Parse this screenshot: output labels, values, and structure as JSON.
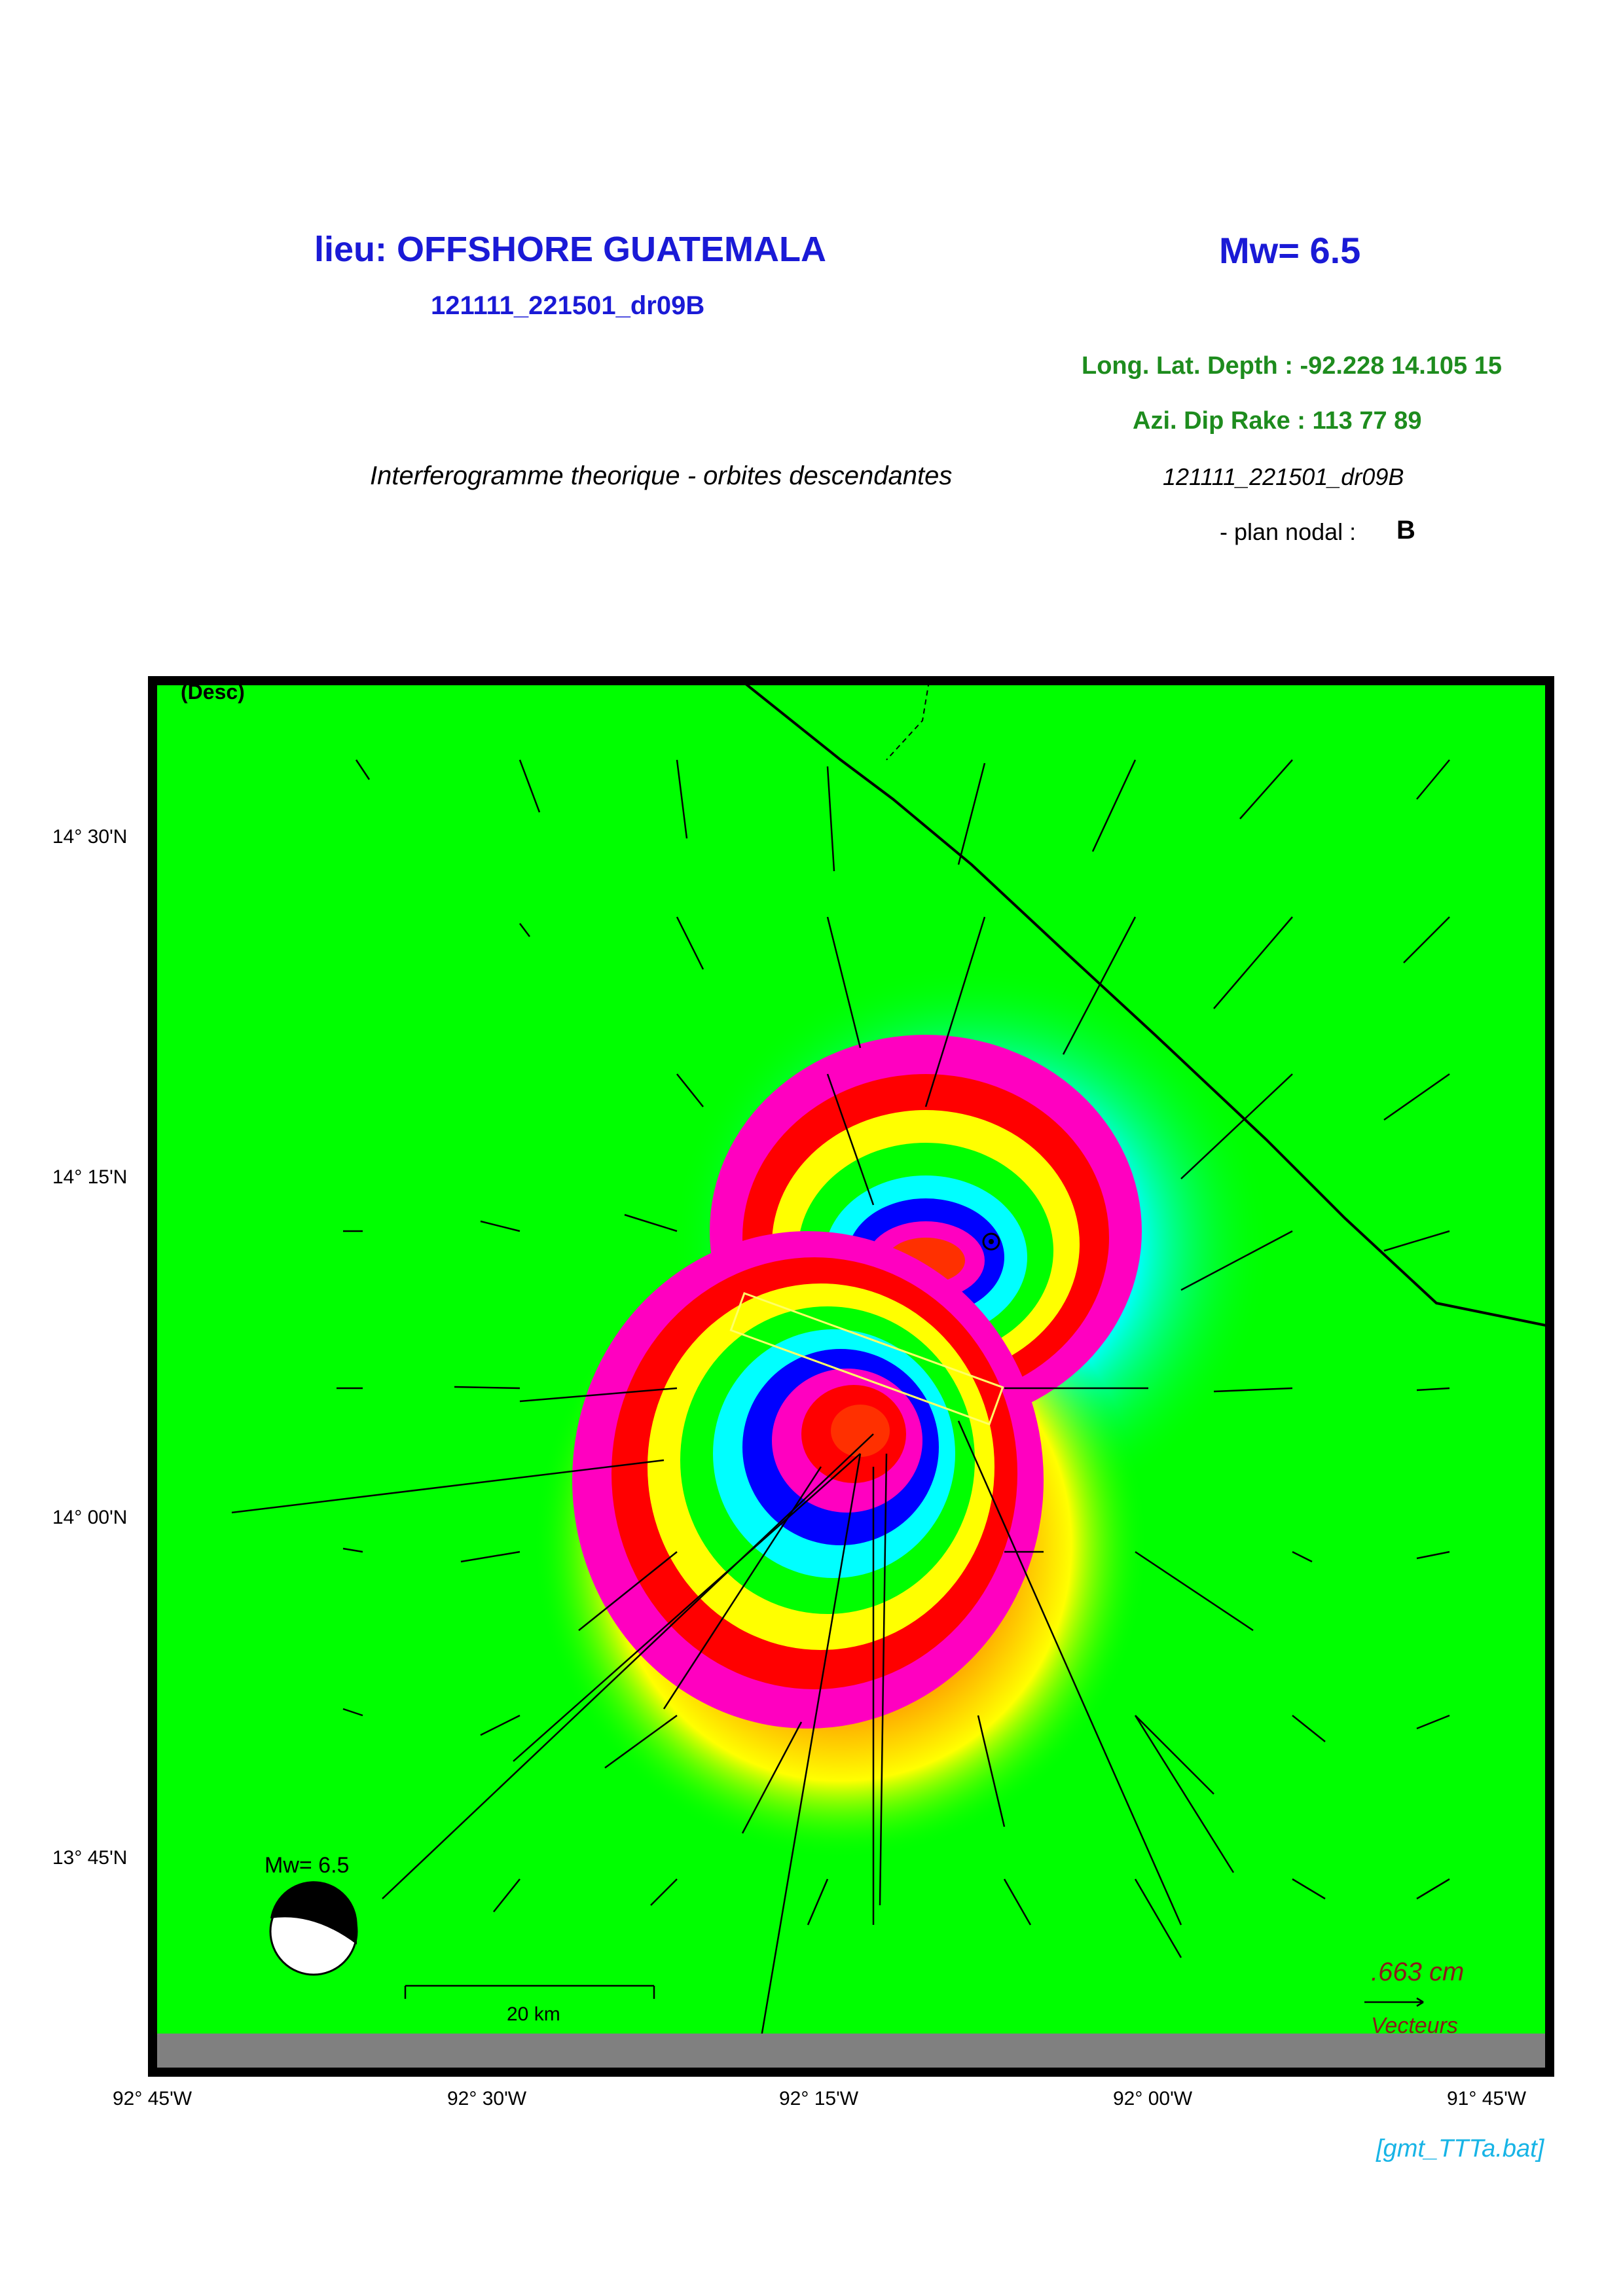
{
  "header": {
    "location": "lieu: OFFSHORE GUATEMALA",
    "magnitude": "Mw= 6.5",
    "event_id": "121111_221501_dr09B",
    "lonlatdepth": "Long. Lat. Depth : -92.228 14.105 15",
    "azidiprake": "Azi.  Dip   Rake :  113 77 89",
    "subtitle": "Interferogramme theorique - orbites descendantes",
    "event_id2": "121111_221501_dr09B",
    "nodal_label": "- plan nodal :",
    "nodal_value": "B"
  },
  "map": {
    "corner_label": "(Desc)",
    "lat_labels": [
      "14° 30'N",
      "14° 15'N",
      "14° 00'N",
      "13° 45'N"
    ],
    "lon_labels": [
      "92° 45'W",
      "92° 30'W",
      "92° 15'W",
      "92° 00'W",
      "91° 45'W"
    ],
    "beachball_label": "Mw= 6.5",
    "scale_bar_label": "20 km",
    "vector_scale_value": ".663  cm",
    "vector_scale_label": "Vecteurs",
    "colors": {
      "background": "#00ff00",
      "land_strip": "#808080",
      "vector": "#000000"
    }
  },
  "footer": {
    "credit": "[gmt_TTTa.bat]"
  }
}
